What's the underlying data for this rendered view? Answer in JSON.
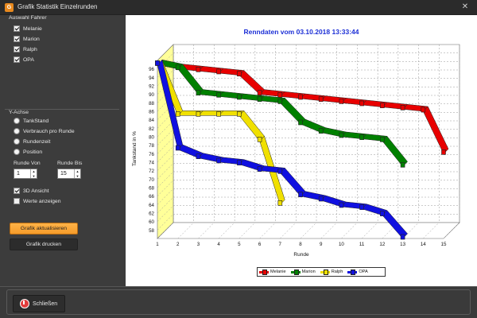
{
  "window": {
    "title": "Grafik Statistik Einzelrunden",
    "close_glyph": "✕",
    "icon_label": "G"
  },
  "sidebar": {
    "drivers_label": "Auswahl Fahrer",
    "drivers": [
      {
        "label": "Melanie",
        "checked": true
      },
      {
        "label": "Marion",
        "checked": true
      },
      {
        "label": "Ralph",
        "checked": true
      },
      {
        "label": "OPA",
        "checked": true
      }
    ],
    "yaxis_label": "Y-Achse",
    "yaxis_options": [
      {
        "label": "TankStand",
        "selected": false
      },
      {
        "label": "Verbrauch pro Runde",
        "selected": false
      },
      {
        "label": "Rundenzeit",
        "selected": false
      },
      {
        "label": "Position",
        "selected": false
      }
    ],
    "runde_von_label": "Runde Von",
    "runde_von_value": "1",
    "runde_bis_label": "Runde Bis",
    "runde_bis_value": "15",
    "ansicht_3d_label": "3D Ansicht",
    "ansicht_3d_checked": true,
    "werte_label": "Werte anzeigen",
    "werte_checked": false,
    "refresh_button": "Grafik aktualisieren",
    "print_button": "Grafik drucken"
  },
  "footer": {
    "close_button": "Schließen"
  },
  "chart_data": {
    "type": "line",
    "title": "Renndaten vom 03.10.2018 13:33:44",
    "xlabel": "Runde",
    "ylabel": "Tankstand in %",
    "x": [
      1,
      2,
      3,
      4,
      5,
      6,
      7,
      8,
      9,
      10,
      11,
      12,
      13,
      14,
      15
    ],
    "ylim": [
      56,
      98
    ],
    "y_ticks": [
      58,
      60,
      62,
      64,
      66,
      68,
      70,
      72,
      74,
      76,
      78,
      80,
      82,
      84,
      86,
      88,
      90,
      92,
      94,
      96
    ],
    "grid": true,
    "three_d": true,
    "legend_position": "bottom",
    "series": [
      {
        "name": "Melanie",
        "color": "#e80000",
        "points": [
          [
            1,
            97
          ],
          [
            2,
            96
          ],
          [
            3,
            95.5
          ],
          [
            4,
            95
          ],
          [
            5,
            94.5
          ],
          [
            6,
            90
          ],
          [
            7,
            89.5
          ],
          [
            8,
            89
          ],
          [
            9,
            88.5
          ],
          [
            10,
            88
          ],
          [
            11,
            87.5
          ],
          [
            12,
            87
          ],
          [
            13,
            86.5
          ],
          [
            14,
            86
          ],
          [
            15,
            76
          ]
        ]
      },
      {
        "name": "Marion",
        "color": "#008000",
        "points": [
          [
            1,
            97
          ],
          [
            2,
            96
          ],
          [
            3,
            90
          ],
          [
            4,
            89.5
          ],
          [
            5,
            89
          ],
          [
            6,
            88.5
          ],
          [
            7,
            88
          ],
          [
            8,
            83
          ],
          [
            9,
            81
          ],
          [
            10,
            80
          ],
          [
            11,
            79.5
          ],
          [
            12,
            79
          ],
          [
            13,
            73
          ]
        ]
      },
      {
        "name": "Ralph",
        "color": "#f0e000",
        "points": [
          [
            1,
            97
          ],
          [
            2,
            85
          ],
          [
            3,
            85
          ],
          [
            4,
            85
          ],
          [
            5,
            85
          ],
          [
            6,
            79
          ],
          [
            7,
            64
          ]
        ]
      },
      {
        "name": "OPA",
        "color": "#1010e0",
        "points": [
          [
            1,
            97
          ],
          [
            2,
            77
          ],
          [
            3,
            75
          ],
          [
            4,
            74
          ],
          [
            5,
            73.5
          ],
          [
            6,
            72
          ],
          [
            7,
            71.5
          ],
          [
            8,
            66
          ],
          [
            9,
            65
          ],
          [
            10,
            63.5
          ],
          [
            11,
            63
          ],
          [
            12,
            61.5
          ],
          [
            13,
            56
          ]
        ]
      }
    ]
  }
}
